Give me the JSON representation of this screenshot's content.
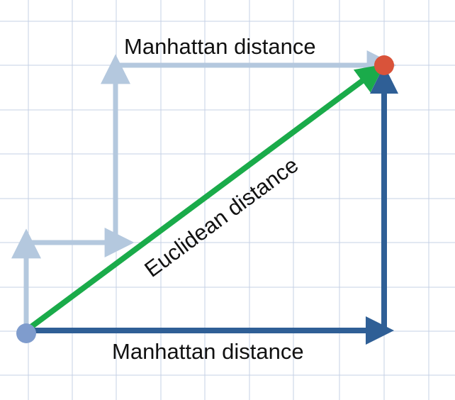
{
  "labels": {
    "manhattan_top": "Manhattan distance",
    "manhattan_bottom": "Manhattan distance",
    "euclidean": "Euclidean distance"
  },
  "colors": {
    "grid": "#c5d0e6",
    "manhattan_light": "#b4c8de",
    "manhattan_dark": "#2f5f96",
    "euclidean": "#1aab4a",
    "start_point": "#7f9ccd",
    "end_point": "#d9533a"
  }
}
